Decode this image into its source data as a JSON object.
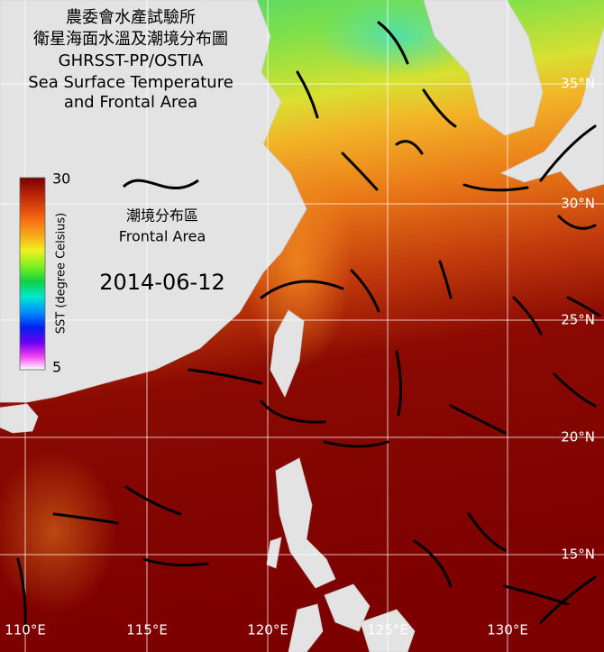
{
  "title": {
    "org": "農委會水產試驗所",
    "map_title": "衛星海面水溫及潮境分布圖",
    "dataset": "GHRSST-PP/OSTIA",
    "subtitle_line1": "Sea Surface Temperature",
    "subtitle_line2": "and Frontal Area"
  },
  "colorbar": {
    "max": 30,
    "min": 5,
    "label": "SST (degree Celsius)"
  },
  "legend": {
    "label_zh": "潮境分布區",
    "label_en": "Frontal Area"
  },
  "date": "2014-06-12",
  "lat_labels": [
    "35°N",
    "30°N",
    "25°N",
    "20°N",
    "15°N"
  ],
  "lon_labels": [
    "110°E",
    "115°E",
    "120°E",
    "125°E",
    "130°E"
  ]
}
